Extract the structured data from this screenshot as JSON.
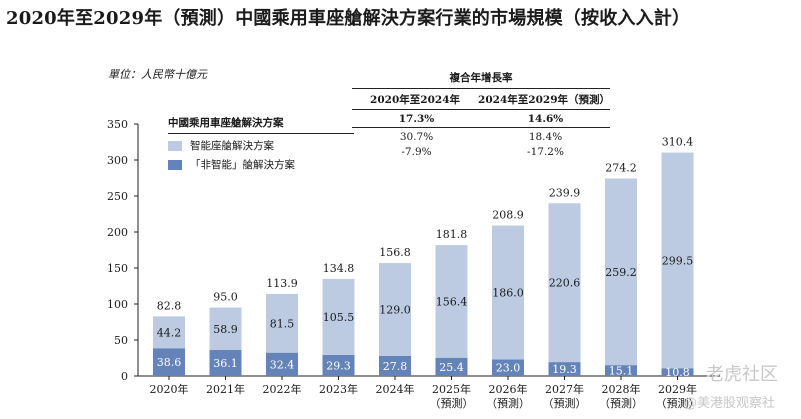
{
  "title": "2020年至2029年（預測）中國乘用車座艙解決方案行業的市場規模（按收入入計）",
  "unit": "單位：人民幣十億元",
  "cagr": {
    "title": "複合年增長率",
    "headers": [
      "2020年至2024年",
      "2024年至2029年（預測）"
    ],
    "total": [
      "17.3%",
      "14.6%"
    ],
    "rows": [
      [
        "30.7%",
        "18.4%"
      ],
      [
        "-7.9%",
        "-17.2%"
      ]
    ]
  },
  "legend": {
    "title": "中國乘用車座艙解決方案",
    "items": [
      "智能座艙解決方案",
      "「非智能」艙解決方案"
    ]
  },
  "colors": {
    "smart": "#bccbe2",
    "non_smart": "#6383b9"
  },
  "watermark": {
    "line1": "老虎社区",
    "line2": "@美港股观察社"
  },
  "chart_data": {
    "type": "bar",
    "stacked": true,
    "categories": [
      "2020年",
      "2021年",
      "2022年",
      "2023年",
      "2024年",
      "2025年",
      "2026年",
      "2027年",
      "2028年",
      "2029年"
    ],
    "category_sublabels": [
      "",
      "",
      "",
      "",
      "",
      "（預測）",
      "（預測）",
      "（預測）",
      "（預測）",
      "（預測）"
    ],
    "series": [
      {
        "name": "「非智能」艙解決方案",
        "values": [
          38.6,
          36.1,
          32.4,
          29.3,
          27.8,
          25.4,
          23.0,
          19.3,
          15.1,
          10.8
        ]
      },
      {
        "name": "智能座艙解決方案",
        "values": [
          44.2,
          58.9,
          81.5,
          105.5,
          129.0,
          156.4,
          186.0,
          220.6,
          259.2,
          299.5
        ]
      }
    ],
    "totals": [
      82.8,
      95.0,
      113.9,
      134.8,
      156.8,
      181.8,
      208.9,
      239.9,
      274.2,
      310.4
    ],
    "ylim": [
      0,
      350
    ],
    "yticks": [
      0,
      50,
      100,
      150,
      200,
      250,
      300,
      350
    ],
    "grid": false,
    "legend_position": "top-left"
  }
}
